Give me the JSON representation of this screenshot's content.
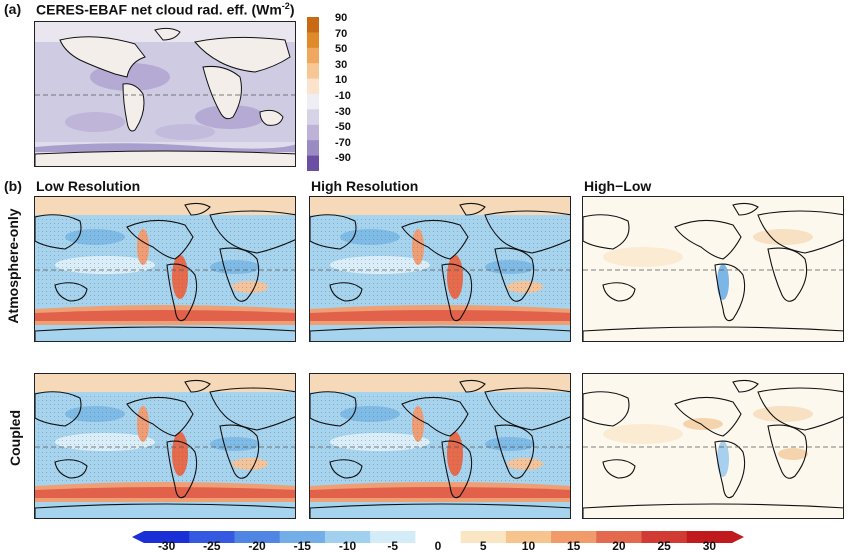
{
  "panel_a": {
    "label": "(a)",
    "title": "CERES-EBAF net cloud rad. eff. (Wm",
    "title_sup": "-2",
    "title_close": ")",
    "colorbar": {
      "ticks": [
        "90",
        "70",
        "50",
        "30",
        "10",
        "-10",
        "-30",
        "-50",
        "-70",
        "-90"
      ],
      "colors": [
        "#c86a14",
        "#e08a2a",
        "#f0a860",
        "#f7c896",
        "#fbe3cc",
        "#efeef4",
        "#d7d3e7",
        "#bcb3d6",
        "#9a8cc2",
        "#6b4fa3"
      ]
    }
  },
  "panel_b": {
    "label": "(b)",
    "column_titles": [
      "Low Resolution",
      "High Resolution",
      "High−Low"
    ],
    "row_titles": [
      "Atmosphere-only",
      "Coupled"
    ]
  },
  "colorbar_b": {
    "ticks": [
      "-30",
      "-25",
      "-20",
      "-15",
      "-10",
      "-5",
      "0",
      "5",
      "10",
      "15",
      "20",
      "25",
      "30"
    ],
    "colors": [
      "#1a2fd6",
      "#3559e0",
      "#4f86e4",
      "#74aee8",
      "#a2d0ef",
      "#d4ecf7",
      "#ffffff",
      "#fbe6c4",
      "#f7c48e",
      "#f19b6a",
      "#e36a4e",
      "#d23a34",
      "#c01a1f"
    ]
  }
}
